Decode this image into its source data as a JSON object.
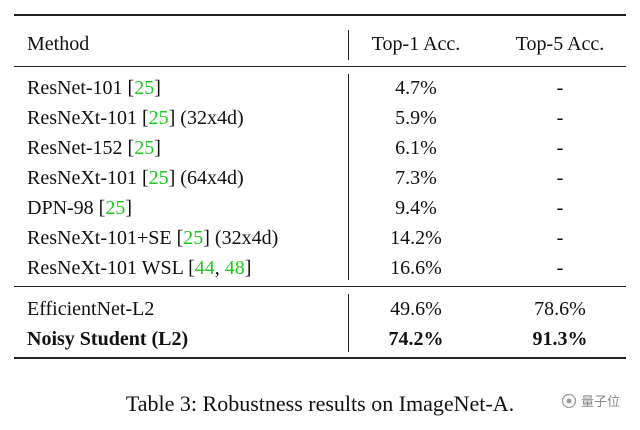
{
  "table": {
    "header": [
      "Method",
      "Top-1 Acc.",
      "Top-5 Acc."
    ],
    "groups": [
      {
        "rows": [
          {
            "method": [
              {
                "text": "ResNet-101 ["
              },
              {
                "text": "25",
                "link": true
              },
              {
                "text": "]"
              }
            ],
            "top1": "4.7%",
            "top5": "-"
          },
          {
            "method": [
              {
                "text": "ResNeXt-101 ["
              },
              {
                "text": "25",
                "link": true
              },
              {
                "text": "] (32x4d)"
              }
            ],
            "top1": "5.9%",
            "top5": "-"
          },
          {
            "method": [
              {
                "text": "ResNet-152 ["
              },
              {
                "text": "25",
                "link": true
              },
              {
                "text": "]"
              }
            ],
            "top1": "6.1%",
            "top5": "-"
          },
          {
            "method": [
              {
                "text": "ResNeXt-101 ["
              },
              {
                "text": "25",
                "link": true
              },
              {
                "text": "] (64x4d)"
              }
            ],
            "top1": "7.3%",
            "top5": "-"
          },
          {
            "method": [
              {
                "text": "DPN-98 ["
              },
              {
                "text": "25",
                "link": true
              },
              {
                "text": "]"
              }
            ],
            "top1": "9.4%",
            "top5": "-"
          },
          {
            "method": [
              {
                "text": "ResNeXt-101+SE ["
              },
              {
                "text": "25",
                "link": true
              },
              {
                "text": "] (32x4d)"
              }
            ],
            "top1": "14.2%",
            "top5": "-"
          },
          {
            "method": [
              {
                "text": "ResNeXt-101 WSL ["
              },
              {
                "text": "44",
                "link": true
              },
              {
                "text": ", "
              },
              {
                "text": "48",
                "link": true
              },
              {
                "text": "]"
              }
            ],
            "top1": "16.6%",
            "top5": "-"
          }
        ]
      },
      {
        "rows": [
          {
            "method": [
              {
                "text": "EfficientNet-L2"
              }
            ],
            "top1": "49.6%",
            "top5": "78.6%"
          },
          {
            "method": [
              {
                "text": "Noisy Student (L2)"
              }
            ],
            "top1": "74.2%",
            "top5": "91.3%",
            "bold": true
          }
        ]
      }
    ],
    "caption": "Table 3: Robustness results on ImageNet-A.",
    "watermark": "量子位"
  }
}
